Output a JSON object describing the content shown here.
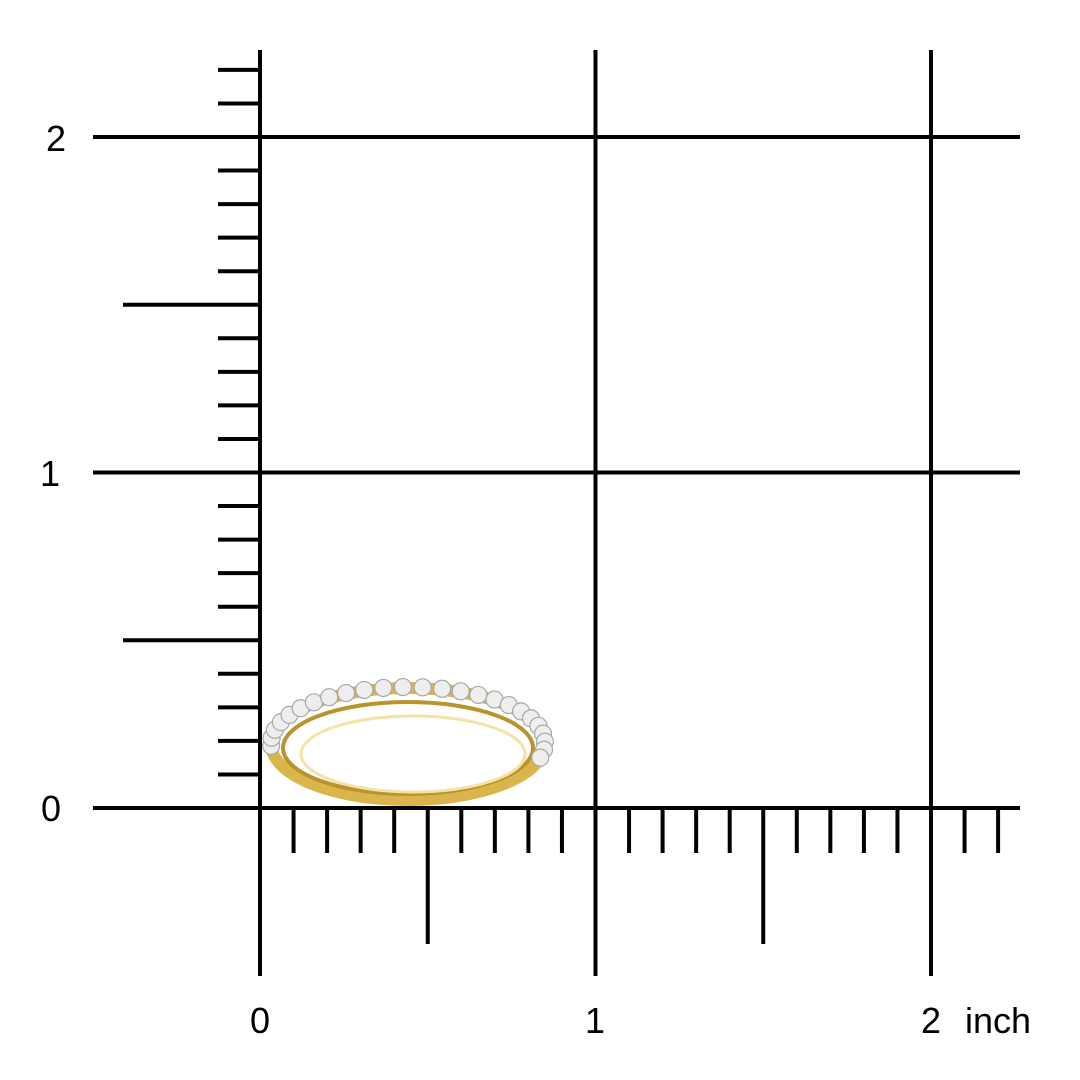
{
  "scale": {
    "unit": "inch",
    "y_labels": [
      "0",
      "1",
      "2"
    ],
    "x_labels": [
      "0",
      "1",
      "2"
    ],
    "x_unit_label": "inch"
  },
  "product": {
    "type": "ring",
    "metal_color": "#d9b54c",
    "stone_color": "#eeeeee"
  }
}
